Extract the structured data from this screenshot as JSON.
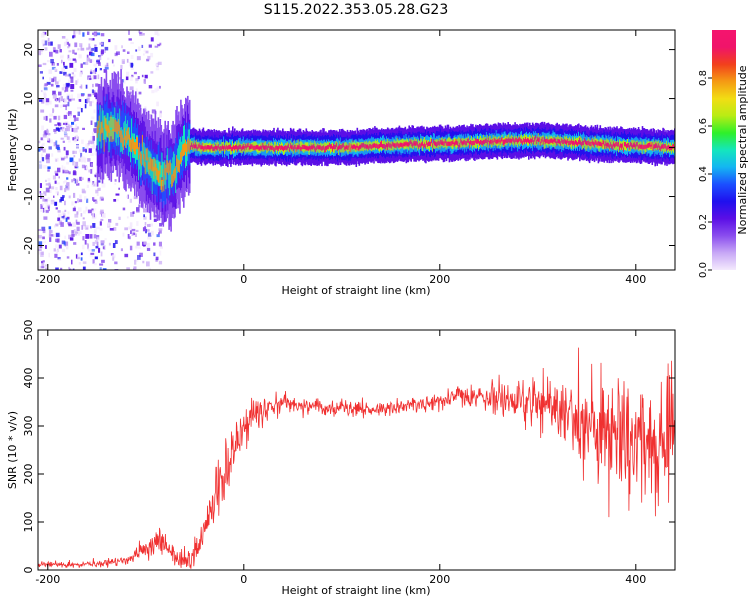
{
  "figure": {
    "title": "S115.2022.353.05.28.G23"
  },
  "chart_data": [
    {
      "type": "heatmap",
      "xlabel": "Height of straight line (km)",
      "ylabel": "Frequency (Hz)",
      "xlim": [
        -210,
        440
      ],
      "ylim": [
        -25,
        24
      ],
      "xticks": [
        "-200",
        "0",
        "200",
        "400"
      ],
      "xtick_values": [
        -200,
        0,
        200,
        400
      ],
      "yticks": [
        "20",
        "10",
        "0",
        "-10",
        "-20"
      ],
      "ytick_values": [
        20,
        10,
        0,
        -10,
        -20
      ],
      "ridge": {
        "x": [
          -150,
          -138,
          -128,
          -118,
          -108,
          -98,
          -90,
          -82,
          -74,
          -68,
          -62,
          -55,
          -45,
          -20,
          0,
          50,
          100,
          130,
          160,
          200,
          230,
          260,
          300,
          340,
          380,
          420,
          440
        ],
        "y": [
          3,
          4.5,
          4,
          2,
          -1,
          -3.5,
          -5,
          -5.5,
          -5,
          -3,
          0,
          0.5,
          0,
          0,
          0,
          0,
          0,
          0.3,
          0.6,
          0.8,
          1,
          1.3,
          1.5,
          1,
          0.5,
          0.2,
          0
        ]
      },
      "noise_region": {
        "x_range": [
          -210,
          -85
        ],
        "y_range": [
          -25,
          24
        ]
      },
      "colorbar": {
        "label": "Normalized spectral amplitude",
        "range": [
          0,
          1
        ],
        "ticks": [
          "0.0",
          "0.2",
          "0.4",
          "0.6",
          "0.8"
        ],
        "tick_values": [
          0,
          0.2,
          0.4,
          0.6,
          0.8
        ],
        "colors": [
          "#f4eafd",
          "#c8a8f6",
          "#8a4dee",
          "#5b0fe6",
          "#1f10ee",
          "#1b4fff",
          "#14b6f2",
          "#14e6bd",
          "#2ef02a",
          "#b9ec14",
          "#f2dd14",
          "#f59a14",
          "#f2401c",
          "#f0146a",
          "#f5146e"
        ]
      },
      "grid": false
    },
    {
      "type": "line",
      "xlabel": "Height of straight line (km)",
      "ylabel": "SNR (10 * v/v)",
      "xlim": [
        -210,
        440
      ],
      "ylim": [
        0,
        500
      ],
      "xticks": [
        "-200",
        "0",
        "200",
        "400"
      ],
      "xtick_values": [
        -200,
        0,
        200,
        400
      ],
      "yticks": [
        "0",
        "100",
        "200",
        "300",
        "400",
        "500"
      ],
      "ytick_values": [
        0,
        100,
        200,
        300,
        400,
        500
      ],
      "series_color": "#f03030",
      "trend": {
        "x": [
          -210,
          -150,
          -120,
          -100,
          -85,
          -70,
          -55,
          -45,
          -35,
          -25,
          -15,
          -5,
          0,
          10,
          20,
          40,
          60,
          100,
          140,
          180,
          220,
          260,
          300,
          340,
          380,
          420,
          440
        ],
        "y": [
          12,
          12,
          20,
          45,
          60,
          25,
          18,
          50,
          110,
          180,
          230,
          270,
          290,
          320,
          335,
          345,
          345,
          335,
          335,
          345,
          360,
          360,
          345,
          320,
          300,
          280,
          270
        ]
      },
      "noise_amplitude": {
        "x": [
          -210,
          -120,
          -90,
          -60,
          -40,
          -20,
          0,
          20,
          60,
          150,
          220,
          260,
          300,
          330,
          360,
          380,
          400,
          420,
          440
        ],
        "y": [
          5,
          8,
          30,
          15,
          40,
          55,
          45,
          25,
          15,
          12,
          22,
          35,
          45,
          60,
          90,
          120,
          120,
          110,
          110
        ]
      },
      "grid": false
    }
  ]
}
